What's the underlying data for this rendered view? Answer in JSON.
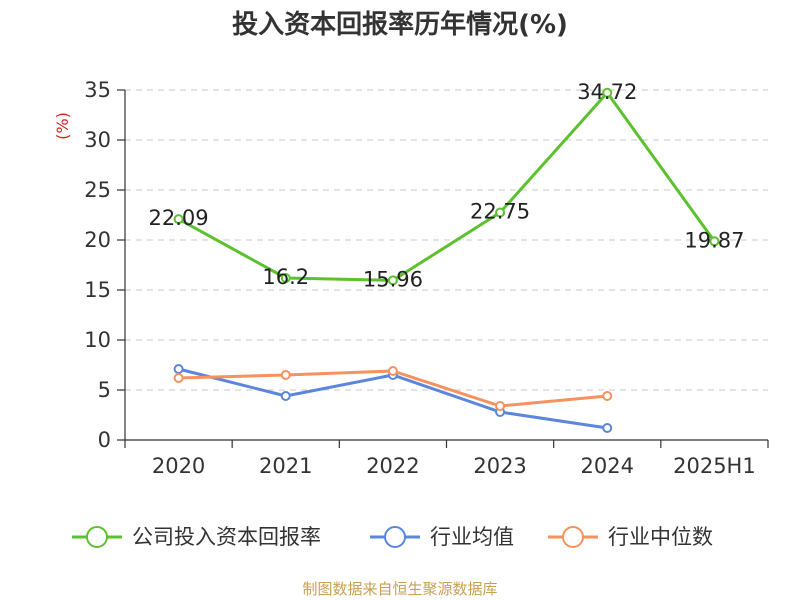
{
  "chart_data": {
    "type": "line",
    "title": "投入资本回报率历年情况(%)",
    "ylabel": "(%)",
    "categories": [
      "2020",
      "2021",
      "2022",
      "2023",
      "2024",
      "2025H1"
    ],
    "ylim": [
      0,
      35
    ],
    "yticks": [
      0,
      5,
      10,
      15,
      20,
      25,
      30,
      35
    ],
    "grid": true,
    "legend_position": "bottom",
    "series": [
      {
        "name": "公司投入资本回报率",
        "color": "#5cc12e",
        "values": [
          22.09,
          16.2,
          15.96,
          22.75,
          34.72,
          19.87
        ],
        "labels": [
          "22.09",
          "16.2",
          "15.96",
          "22.75",
          "34.72",
          "19.87"
        ]
      },
      {
        "name": "行业均值",
        "color": "#5b86dc",
        "values": [
          7.1,
          4.4,
          6.5,
          2.8,
          1.2,
          null
        ]
      },
      {
        "name": "行业中位数",
        "color": "#f5925e",
        "values": [
          6.2,
          6.5,
          6.9,
          3.4,
          4.4,
          null
        ]
      }
    ],
    "source": "制图数据来自恒生聚源数据库"
  }
}
